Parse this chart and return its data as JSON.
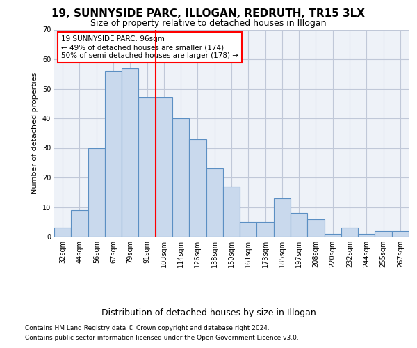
{
  "title1": "19, SUNNYSIDE PARC, ILLOGAN, REDRUTH, TR15 3LX",
  "title2": "Size of property relative to detached houses in Illogan",
  "xlabel": "Distribution of detached houses by size in Illogan",
  "ylabel": "Number of detached properties",
  "categories": [
    "32sqm",
    "44sqm",
    "56sqm",
    "67sqm",
    "79sqm",
    "91sqm",
    "103sqm",
    "114sqm",
    "126sqm",
    "138sqm",
    "150sqm",
    "161sqm",
    "173sqm",
    "185sqm",
    "197sqm",
    "208sqm",
    "220sqm",
    "232sqm",
    "244sqm",
    "255sqm",
    "267sqm"
  ],
  "values": [
    3,
    9,
    30,
    56,
    57,
    47,
    47,
    40,
    33,
    23,
    17,
    5,
    5,
    13,
    8,
    6,
    1,
    3,
    1,
    2,
    2
  ],
  "bar_color": "#c9d9ed",
  "bar_edge_color": "#5b8fc3",
  "grid_color": "#c0c8d8",
  "vline_x": 5.5,
  "vline_color": "red",
  "annotation_text": "19 SUNNYSIDE PARC: 96sqm\n← 49% of detached houses are smaller (174)\n50% of semi-detached houses are larger (178) →",
  "annotation_box_color": "white",
  "annotation_box_edge": "red",
  "ylim": [
    0,
    70
  ],
  "yticks": [
    0,
    10,
    20,
    30,
    40,
    50,
    60,
    70
  ],
  "footnote1": "Contains HM Land Registry data © Crown copyright and database right 2024.",
  "footnote2": "Contains public sector information licensed under the Open Government Licence v3.0.",
  "bg_color": "#eef2f8",
  "title1_fontsize": 11,
  "title2_fontsize": 9,
  "ylabel_fontsize": 8,
  "xlabel_fontsize": 9,
  "tick_fontsize": 7,
  "annot_fontsize": 7.5,
  "footnote_fontsize": 6.5
}
